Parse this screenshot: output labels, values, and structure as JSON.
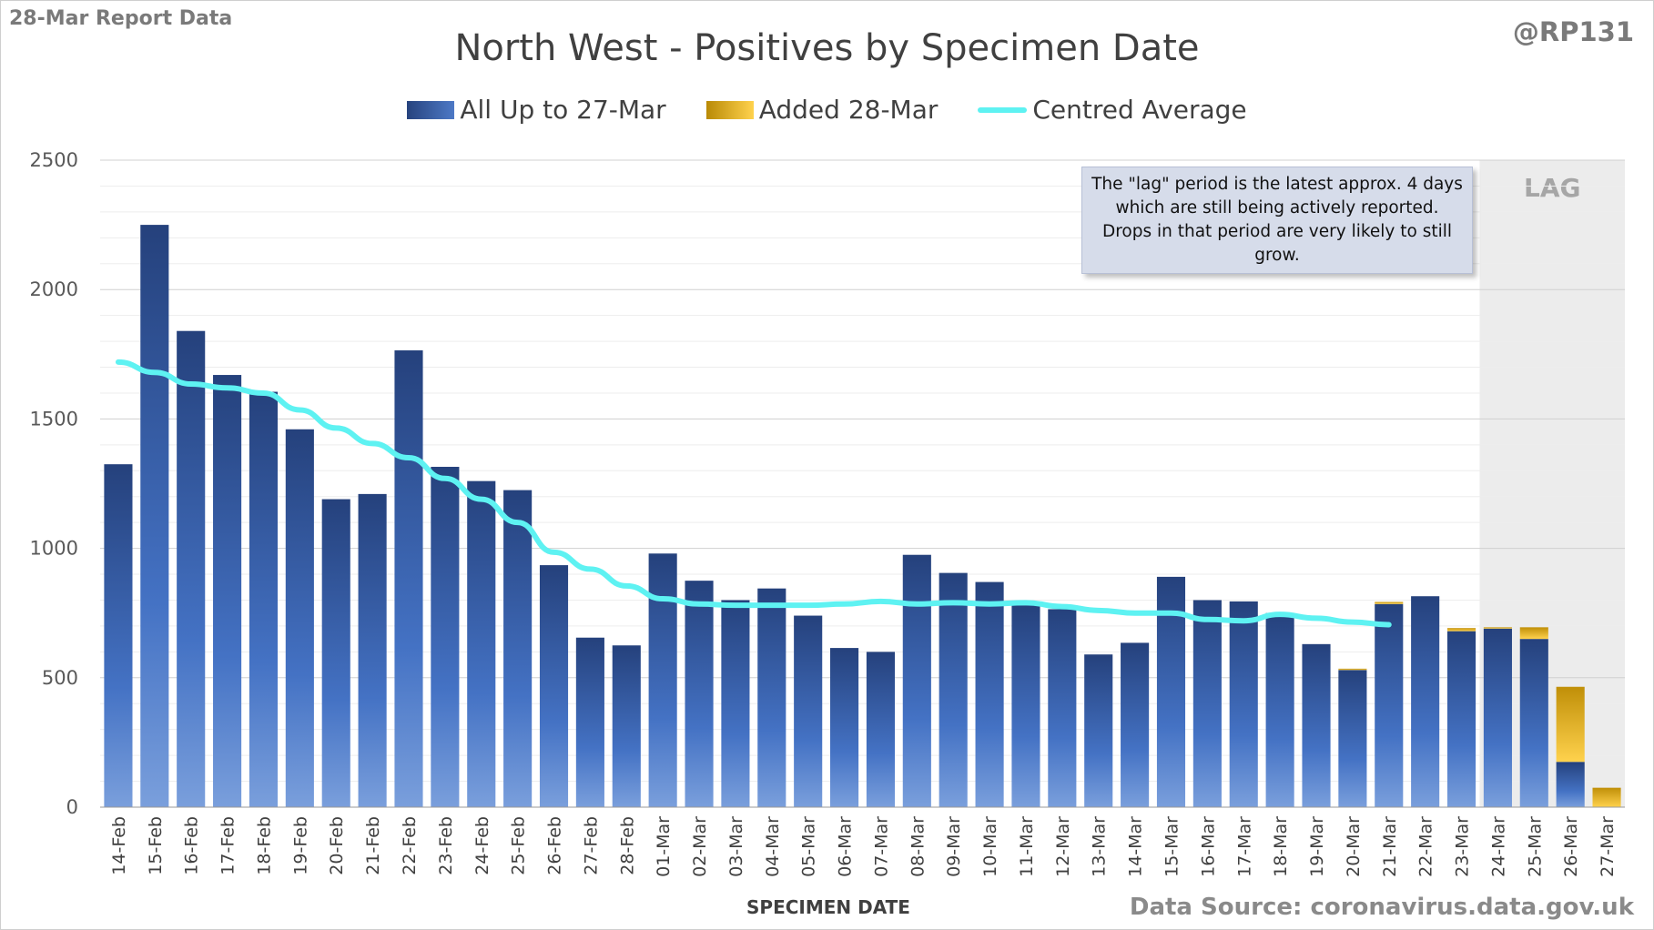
{
  "header": {
    "report_label": "28-Mar Report Data",
    "handle": "@RP131"
  },
  "source": "Data Source: coronavirus.data.gov.uk",
  "note_text": "The \"lag\" period is the latest approx. 4 days which are still being actively reported. Drops in that period are very likely to still grow.",
  "colors": {
    "bar_blue_dark": "#27437e",
    "bar_blue_light": "#6f97da",
    "added_gold": "#e7b521",
    "average_line": "#5ef2f2",
    "lag_shade": "#ececec"
  },
  "chart_data": {
    "type": "bar",
    "title": "North West - Positives by Specimen Date",
    "xlabel": "SPECIMEN DATE",
    "ylabel": "",
    "ylim": [
      0,
      2500
    ],
    "yticks": [
      0,
      500,
      1000,
      1500,
      2000,
      2500
    ],
    "grid": true,
    "legend_position": "top",
    "stacked": true,
    "lag_label": "LAG",
    "lag_categories": [
      "24-Mar",
      "25-Mar",
      "26-Mar",
      "27-Mar"
    ],
    "categories": [
      "14-Feb",
      "15-Feb",
      "16-Feb",
      "17-Feb",
      "18-Feb",
      "19-Feb",
      "20-Feb",
      "21-Feb",
      "22-Feb",
      "23-Feb",
      "24-Feb",
      "25-Feb",
      "26-Feb",
      "27-Feb",
      "28-Feb",
      "01-Mar",
      "02-Mar",
      "03-Mar",
      "04-Mar",
      "05-Mar",
      "06-Mar",
      "07-Mar",
      "08-Mar",
      "09-Mar",
      "10-Mar",
      "11-Mar",
      "12-Mar",
      "13-Mar",
      "14-Mar",
      "15-Mar",
      "16-Mar",
      "17-Mar",
      "18-Mar",
      "19-Mar",
      "20-Mar",
      "21-Mar",
      "22-Mar",
      "23-Mar",
      "24-Mar",
      "25-Mar",
      "26-Mar",
      "27-Mar"
    ],
    "series": [
      {
        "name": "All Up to 27-Mar",
        "values": [
          1325,
          2250,
          1840,
          1670,
          1605,
          1460,
          1190,
          1210,
          1765,
          1315,
          1260,
          1225,
          935,
          655,
          625,
          980,
          875,
          800,
          845,
          740,
          615,
          600,
          975,
          905,
          870,
          780,
          765,
          590,
          635,
          890,
          800,
          795,
          750,
          630,
          530,
          785,
          815,
          680,
          690,
          650,
          175,
          0
        ]
      },
      {
        "name": "Added 28-Mar",
        "values": [
          0,
          0,
          0,
          0,
          0,
          0,
          0,
          0,
          0,
          0,
          0,
          0,
          0,
          0,
          0,
          0,
          0,
          0,
          0,
          0,
          0,
          0,
          0,
          0,
          0,
          0,
          0,
          0,
          0,
          0,
          0,
          0,
          0,
          0,
          5,
          8,
          0,
          12,
          5,
          45,
          290,
          75
        ]
      },
      {
        "name": "Centred Average",
        "type": "line",
        "values": [
          1720,
          1680,
          1635,
          1620,
          1600,
          1535,
          1465,
          1405,
          1350,
          1270,
          1190,
          1100,
          985,
          920,
          855,
          805,
          785,
          780,
          780,
          780,
          785,
          795,
          785,
          790,
          785,
          790,
          775,
          760,
          750,
          750,
          725,
          720,
          745,
          730,
          715,
          705,
          null,
          null,
          null,
          null,
          null,
          null
        ]
      }
    ]
  }
}
